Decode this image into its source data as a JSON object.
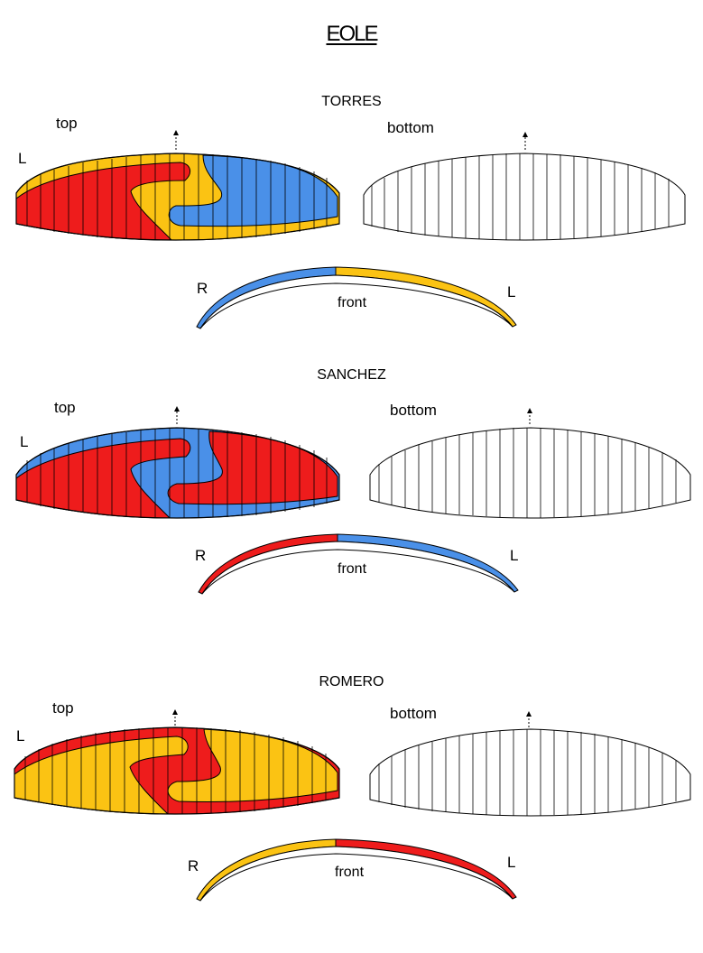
{
  "title": "EOLE",
  "colors": {
    "red": "#ee1c1c",
    "yellow": "#fbc313",
    "blue": "#4a90e8",
    "white": "#ffffff",
    "outline": "#000000"
  },
  "models": [
    {
      "name": "TORRES",
      "top_label": "top",
      "bottom_label": "bottom",
      "side_label_L": "L",
      "front_label": "front",
      "front_R": "R",
      "front_L": "L",
      "top_colors": {
        "band": "yellow",
        "left": "red",
        "right": "blue"
      },
      "front_colors": {
        "right_half": "blue",
        "left_half": "yellow"
      }
    },
    {
      "name": "SANCHEZ",
      "top_label": "top",
      "bottom_label": "bottom",
      "side_label_L": "L",
      "front_label": "front",
      "front_R": "R",
      "front_L": "L",
      "top_colors": {
        "band": "blue",
        "left": "red",
        "right": "red",
        "swirl": "blue"
      },
      "front_colors": {
        "right_half": "red",
        "left_half": "blue"
      }
    },
    {
      "name": "ROMERO",
      "top_label": "top",
      "bottom_label": "bottom",
      "side_label_L": "L",
      "front_label": "front",
      "front_R": "R",
      "front_L": "L",
      "top_colors": {
        "band": "red",
        "left": "yellow",
        "right": "yellow",
        "swirl": "red"
      },
      "front_colors": {
        "right_half": "yellow",
        "left_half": "red"
      }
    }
  ]
}
